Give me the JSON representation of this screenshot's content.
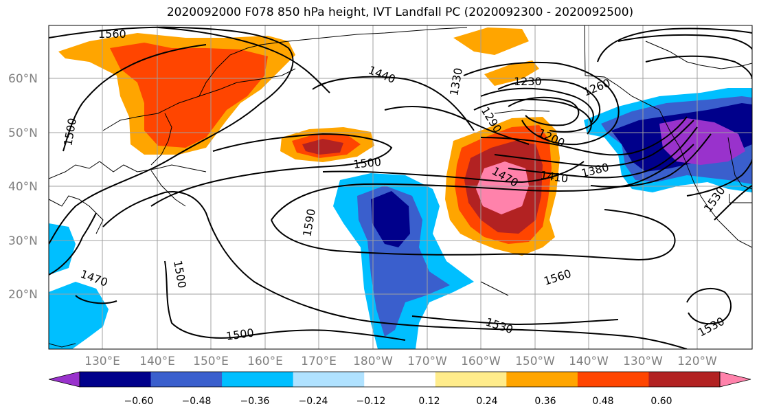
{
  "title": "2020092000 F078 850 hPa height, IVT Landfall PC (2020092300 - 2020092500)",
  "map": {
    "lat_labels": [
      "60°N",
      "50°N",
      "40°N",
      "30°N",
      "20°N"
    ],
    "lon_labels": [
      "130°E",
      "140°E",
      "150°E",
      "160°E",
      "170°E",
      "180°W",
      "170°W",
      "160°W",
      "150°W",
      "140°W",
      "130°W",
      "120°W"
    ],
    "contour_labels": [
      "1560",
      "1440",
      "1330",
      "1230",
      "1260",
      "1500",
      "1290",
      "1200",
      "1470",
      "1410",
      "1380",
      "1590",
      "1470",
      "1500",
      "1560",
      "1530",
      "1500",
      "1530",
      "1530",
      "1500"
    ]
  },
  "colorbar": {
    "tick_labels": [
      "−0.60",
      "−0.48",
      "−0.36",
      "−0.24",
      "−0.12",
      "0.12",
      "0.24",
      "0.36",
      "0.48",
      "0.60"
    ],
    "colors": [
      "#9932cc",
      "#00008b",
      "#3a5fcd",
      "#00bfff",
      "#b0e2ff",
      "#ffffff",
      "#ffec8b",
      "#ffa500",
      "#ff4500",
      "#b22222",
      "#ff82ab"
    ]
  }
}
